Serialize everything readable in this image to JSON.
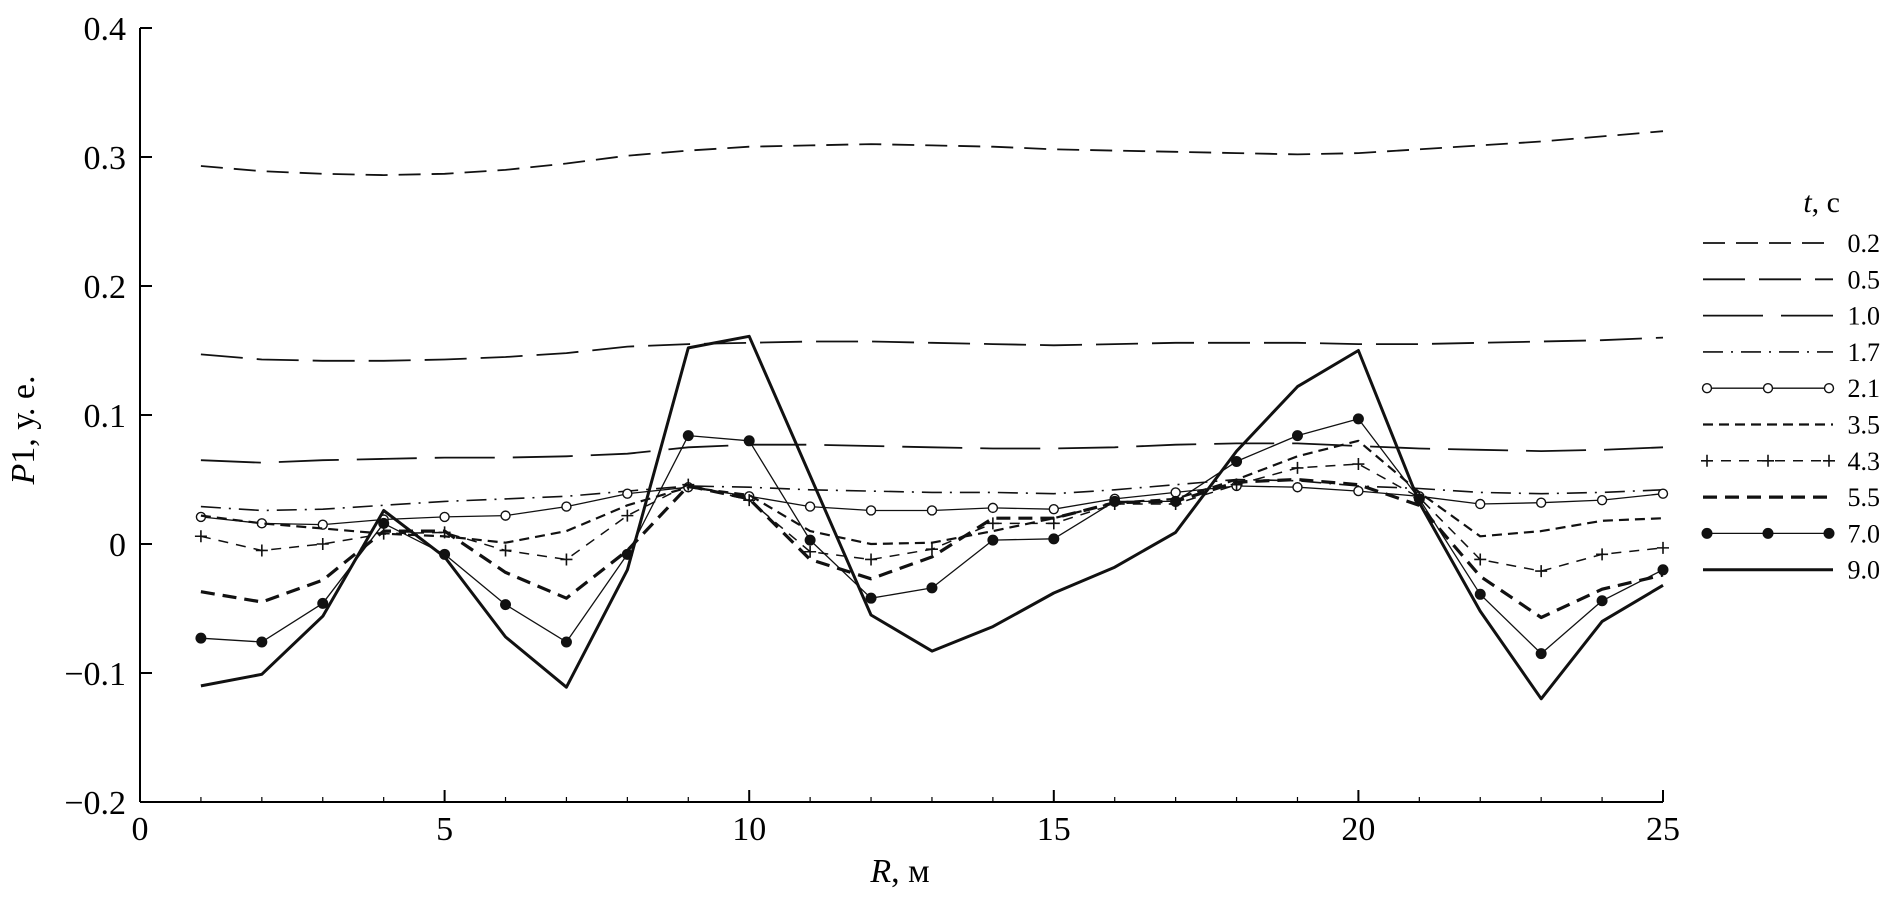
{
  "chart_data": {
    "type": "line",
    "xlabel_var": "R",
    "xlabel_unit": ", м",
    "ylabel_var": "P",
    "ylabel_unit": "1, у. е.",
    "xlim": [
      0,
      25
    ],
    "ylim": [
      -0.2,
      0.4
    ],
    "xticks": [
      0,
      5,
      10,
      15,
      20,
      25
    ],
    "xtick_labels": [
      "0",
      "5",
      "10",
      "15",
      "20",
      "25"
    ],
    "yticks": [
      -0.2,
      -0.1,
      0,
      0.1,
      0.2,
      0.3,
      0.4
    ],
    "ytick_labels": [
      "−0.2",
      "−0.1",
      "0",
      "0.1",
      "0.2",
      "0.3",
      "0.4"
    ],
    "grid": false,
    "legend_position": "right",
    "legend_title_var": "t",
    "legend_title_unit": ", с",
    "x": [
      1,
      2,
      3,
      4,
      5,
      6,
      7,
      8,
      9,
      10,
      11,
      12,
      13,
      14,
      15,
      16,
      17,
      18,
      19,
      20,
      21,
      22,
      23,
      24,
      25
    ],
    "series": [
      {
        "name": "0.2",
        "style": "medium-dash",
        "values": [
          0.293,
          0.289,
          0.287,
          0.286,
          0.287,
          0.29,
          0.295,
          0.301,
          0.305,
          0.308,
          0.309,
          0.31,
          0.309,
          0.308,
          0.306,
          0.305,
          0.304,
          0.303,
          0.302,
          0.303,
          0.306,
          0.309,
          0.312,
          0.316,
          0.32
        ]
      },
      {
        "name": "0.5",
        "style": "long-dash",
        "values": [
          0.147,
          0.143,
          0.142,
          0.142,
          0.143,
          0.145,
          0.148,
          0.153,
          0.155,
          0.156,
          0.157,
          0.157,
          0.156,
          0.155,
          0.154,
          0.155,
          0.156,
          0.156,
          0.156,
          0.155,
          0.155,
          0.156,
          0.157,
          0.158,
          0.16
        ]
      },
      {
        "name": "1.0",
        "style": "longer-dash",
        "values": [
          0.065,
          0.063,
          0.065,
          0.066,
          0.067,
          0.067,
          0.068,
          0.07,
          0.075,
          0.077,
          0.077,
          0.076,
          0.075,
          0.074,
          0.074,
          0.075,
          0.077,
          0.078,
          0.078,
          0.076,
          0.074,
          0.073,
          0.072,
          0.073,
          0.075
        ]
      },
      {
        "name": "1.7",
        "style": "dash-dot",
        "values": [
          0.029,
          0.026,
          0.027,
          0.03,
          0.033,
          0.035,
          0.037,
          0.041,
          0.045,
          0.044,
          0.042,
          0.041,
          0.04,
          0.04,
          0.039,
          0.042,
          0.046,
          0.05,
          0.049,
          0.045,
          0.043,
          0.04,
          0.039,
          0.04,
          0.042
        ]
      },
      {
        "name": "2.1",
        "style": "open-circle",
        "values": [
          0.021,
          0.016,
          0.015,
          0.019,
          0.021,
          0.022,
          0.029,
          0.039,
          0.044,
          0.037,
          0.029,
          0.026,
          0.026,
          0.028,
          0.027,
          0.035,
          0.04,
          0.045,
          0.044,
          0.041,
          0.037,
          0.031,
          0.032,
          0.034,
          0.039
        ]
      },
      {
        "name": "3.5",
        "style": "short-dash",
        "values": [
          0.022,
          0.016,
          0.012,
          0.008,
          0.006,
          0.001,
          0.01,
          0.03,
          0.044,
          0.038,
          0.01,
          0.0,
          0.001,
          0.01,
          0.02,
          0.032,
          0.035,
          0.05,
          0.068,
          0.08,
          0.04,
          0.006,
          0.01,
          0.018,
          0.02
        ]
      },
      {
        "name": "4.3",
        "style": "plus-dash",
        "values": [
          0.006,
          -0.005,
          0.0,
          0.008,
          0.009,
          -0.005,
          -0.012,
          0.022,
          0.046,
          0.034,
          -0.006,
          -0.012,
          -0.004,
          0.016,
          0.016,
          0.031,
          0.031,
          0.046,
          0.059,
          0.062,
          0.036,
          -0.012,
          -0.021,
          -0.008,
          -0.003
        ]
      },
      {
        "name": "5.5",
        "style": "bold-dash",
        "values": [
          -0.037,
          -0.045,
          -0.028,
          0.01,
          0.01,
          -0.022,
          -0.042,
          -0.005,
          0.045,
          0.035,
          -0.012,
          -0.027,
          -0.01,
          0.02,
          0.02,
          0.032,
          0.033,
          0.048,
          0.05,
          0.046,
          0.03,
          -0.025,
          -0.057,
          -0.035,
          -0.024
        ]
      },
      {
        "name": "7.0",
        "style": "filled-circle",
        "values": [
          -0.073,
          -0.076,
          -0.046,
          0.016,
          -0.008,
          -0.047,
          -0.076,
          -0.008,
          0.084,
          0.08,
          0.003,
          -0.042,
          -0.034,
          0.003,
          0.004,
          0.033,
          0.033,
          0.064,
          0.084,
          0.097,
          0.035,
          -0.039,
          -0.085,
          -0.044,
          -0.02
        ]
      },
      {
        "name": "9.0",
        "style": "solid-bold",
        "values": [
          -0.11,
          -0.101,
          -0.056,
          0.026,
          -0.01,
          -0.072,
          -0.111,
          -0.02,
          0.152,
          0.161,
          0.053,
          -0.055,
          -0.083,
          -0.064,
          -0.038,
          -0.018,
          0.009,
          0.072,
          0.122,
          0.15,
          0.032,
          -0.052,
          -0.12,
          -0.06,
          -0.032
        ]
      }
    ]
  }
}
